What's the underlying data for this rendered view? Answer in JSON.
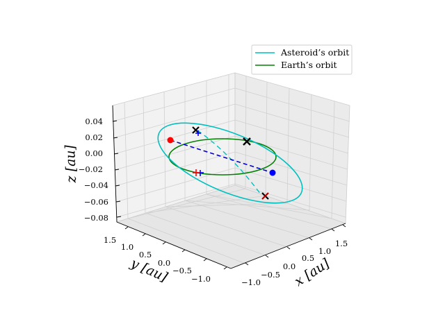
{
  "chart_data": {
    "type": "line",
    "projection": "3d",
    "title": "",
    "xlabel": "x [au]",
    "ylabel": "y [au]",
    "zlabel": "z [au]",
    "xlim": [
      -1.2,
      1.8
    ],
    "ylim": [
      -1.3,
      1.7
    ],
    "zlim": [
      -0.09,
      0.055
    ],
    "x_ticks": [
      "−1.0",
      "−0.5",
      "0.0",
      "0.5",
      "1.0",
      "1.5"
    ],
    "y_ticks": [
      "1.5",
      "1.0",
      "0.5",
      "0.0",
      "−0.5",
      "−1.0"
    ],
    "z_ticks": [
      "0.04",
      "0.02",
      "0.00",
      "−0.02",
      "−0.04",
      "−0.06",
      "−0.08"
    ],
    "grid": true,
    "legend_position": "top-right",
    "series": [
      {
        "name": "Asteroid’s orbit",
        "color": "#00bfbf",
        "semi_major_axis": 1.1,
        "eccentricity": 0.28,
        "inclination_deg": 4
      },
      {
        "name": "Earth’s orbit",
        "color": "#008000",
        "radius": 1.0,
        "inclination_deg": 0
      }
    ],
    "line_of_nodes": {
      "color": "#0000cc",
      "style": "dashed"
    },
    "markers": [
      {
        "type": "point",
        "color": "#ff0000"
      },
      {
        "type": "point",
        "color": "#0000ff"
      },
      {
        "type": "x",
        "color": "#000000"
      },
      {
        "type": "x",
        "color": "#000000"
      },
      {
        "type": "x",
        "color": "#000000"
      },
      {
        "type": "plus",
        "color": "#ff0000"
      },
      {
        "type": "plus",
        "color": "#0000ff"
      }
    ]
  }
}
